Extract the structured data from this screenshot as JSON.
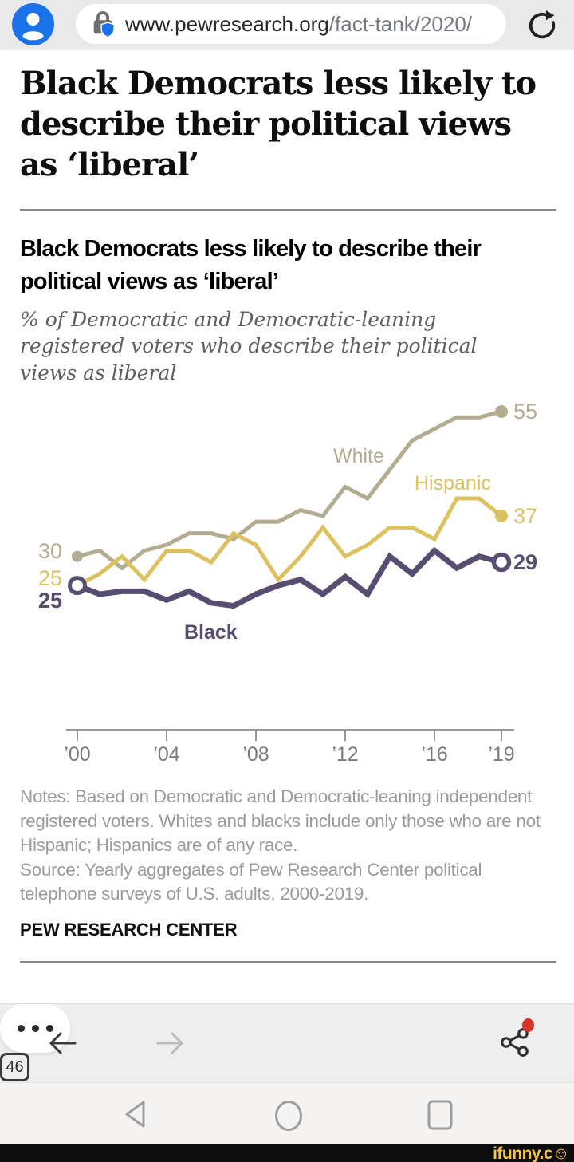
{
  "browser": {
    "url_host": "www.pewresearch.org",
    "url_path": "/fact-tank/2020/",
    "avatar_icon": "person-icon",
    "lock_icon": "lock-shield-icon",
    "refresh_icon": "refresh-icon"
  },
  "article": {
    "headline": "Black Democrats less likely to describe their political views as ‘liberal’"
  },
  "chart_data": {
    "type": "line",
    "title": "Black Democrats less likely to describe their political views as ‘liberal’",
    "subtitle": "% of Democratic and Democratic-leaning registered voters who describe their political views as liberal",
    "x": [
      2000,
      2001,
      2002,
      2003,
      2004,
      2005,
      2006,
      2007,
      2008,
      2009,
      2010,
      2011,
      2012,
      2013,
      2014,
      2015,
      2016,
      2017,
      2018,
      2019
    ],
    "x_ticks": [
      {
        "label": "’00",
        "year": 2000
      },
      {
        "label": "’04",
        "year": 2004
      },
      {
        "label": "’08",
        "year": 2008
      },
      {
        "label": "’12",
        "year": 2012
      },
      {
        "label": "’16",
        "year": 2016
      },
      {
        "label": "’19",
        "year": 2019
      }
    ],
    "ylim": [
      20,
      57
    ],
    "grid": false,
    "legend_position": "inline-labels",
    "series": [
      {
        "name": "White",
        "color": "#b2ad90",
        "line_width": 5,
        "values": [
          30,
          31,
          28,
          31,
          32,
          34,
          34,
          33,
          36,
          36,
          38,
          37,
          42,
          40,
          45,
          50,
          52,
          54,
          54,
          55
        ],
        "start_dot": "filled",
        "end_dot": "filled"
      },
      {
        "name": "Hispanic",
        "color": "#ddc15e",
        "line_width": 5,
        "values": [
          25,
          27,
          30,
          26,
          31,
          31,
          29,
          34,
          32,
          26,
          30,
          35,
          30,
          32,
          35,
          35,
          33,
          40,
          40,
          37
        ],
        "start_dot": "none",
        "end_dot": "filled"
      },
      {
        "name": "Black",
        "color": "#564d70",
        "line_width": 7,
        "values": [
          25,
          23.5,
          24,
          24,
          22.5,
          24,
          22,
          21.5,
          23.5,
          25,
          26,
          23.5,
          26.5,
          23.5,
          30,
          27,
          31,
          28,
          30,
          29
        ],
        "start_dot": "open",
        "end_dot": "open"
      }
    ]
  },
  "notes": {
    "notes_text": "Notes: Based on Democratic and Democratic-leaning independent registered voters. Whites and blacks include only those who are not Hispanic; Hispanics are of any race.",
    "source_text": "Source: Yearly aggregates of Pew Research Center political telephone surveys of U.S. adults, 2000-2019.",
    "branding": "PEW RESEARCH CENTER"
  },
  "toolbar": {
    "back_icon": "arrow-left-icon",
    "forward_icon": "arrow-right-icon",
    "more_icon": "three-dots-icon",
    "tab_count": "46",
    "share_icon": "share-nodes-icon",
    "notification_badge_color": "#d8332a"
  },
  "navbar": {
    "back_icon": "triangle-left-icon",
    "home_icon": "circle-icon",
    "recents_icon": "square-icon"
  },
  "watermark": {
    "text": "ifunny.c",
    "smiley": "☺"
  },
  "colors": {
    "avatar_blue": "#1a73e8",
    "lock_shield_blue": "#1a73e8",
    "badge_red": "#d8332a",
    "watermark_yellow": "#f6c33d"
  }
}
